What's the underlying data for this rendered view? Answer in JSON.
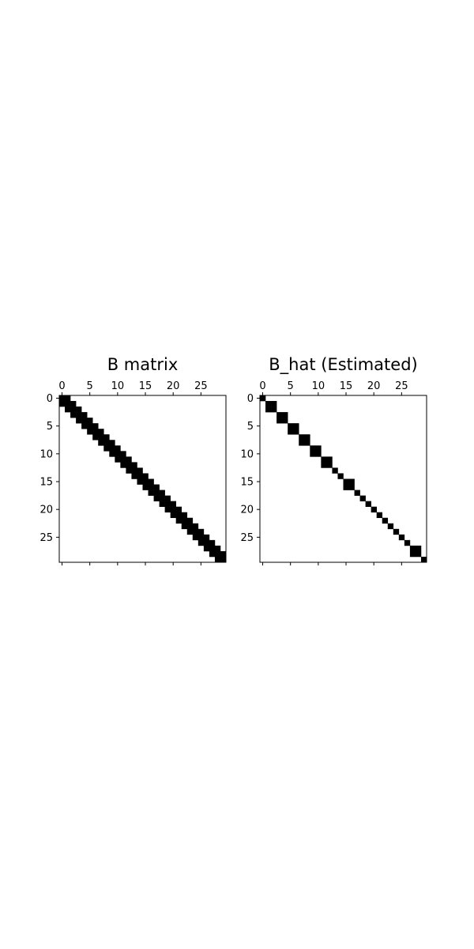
{
  "chart_data": [
    {
      "type": "heatmap",
      "title": "B matrix",
      "xlabel": "",
      "ylabel": "",
      "size": 30,
      "xlim": [
        -0.5,
        29.5
      ],
      "ylim": [
        29.5,
        -0.5
      ],
      "xticks": [
        0,
        5,
        10,
        15,
        20,
        25
      ],
      "yticks": [
        0,
        5,
        10,
        15,
        20,
        25
      ],
      "x_ticks_position": "top",
      "grid": false,
      "colors": {
        "nonzero": "#000000",
        "zero": "#ffffff"
      },
      "nonzero_pattern": "tridiagonal",
      "bandwidth": 1
    },
    {
      "type": "heatmap",
      "title": "B_hat (Estimated)",
      "xlabel": "",
      "ylabel": "",
      "size": 30,
      "xlim": [
        -0.5,
        29.5
      ],
      "ylim": [
        29.5,
        -0.5
      ],
      "xticks": [
        0,
        5,
        10,
        15,
        20,
        25
      ],
      "yticks": [
        0,
        5,
        10,
        15,
        20,
        25
      ],
      "x_ticks_position": "top",
      "grid": false,
      "colors": {
        "nonzero": "#000000",
        "zero": "#ffffff"
      },
      "nonzero_pattern": "block-diagonal",
      "blocks": [
        [
          0,
          0
        ],
        [
          1,
          2
        ],
        [
          3,
          4
        ],
        [
          5,
          6
        ],
        [
          7,
          8
        ],
        [
          9,
          10
        ],
        [
          11,
          12
        ],
        [
          13,
          13
        ],
        [
          14,
          14
        ],
        [
          15,
          16
        ],
        [
          17,
          17
        ],
        [
          18,
          18
        ],
        [
          19,
          19
        ],
        [
          20,
          20
        ],
        [
          21,
          21
        ],
        [
          22,
          22
        ],
        [
          23,
          23
        ],
        [
          24,
          24
        ],
        [
          25,
          25
        ],
        [
          26,
          26
        ],
        [
          27,
          28
        ],
        [
          29,
          29
        ]
      ]
    }
  ]
}
